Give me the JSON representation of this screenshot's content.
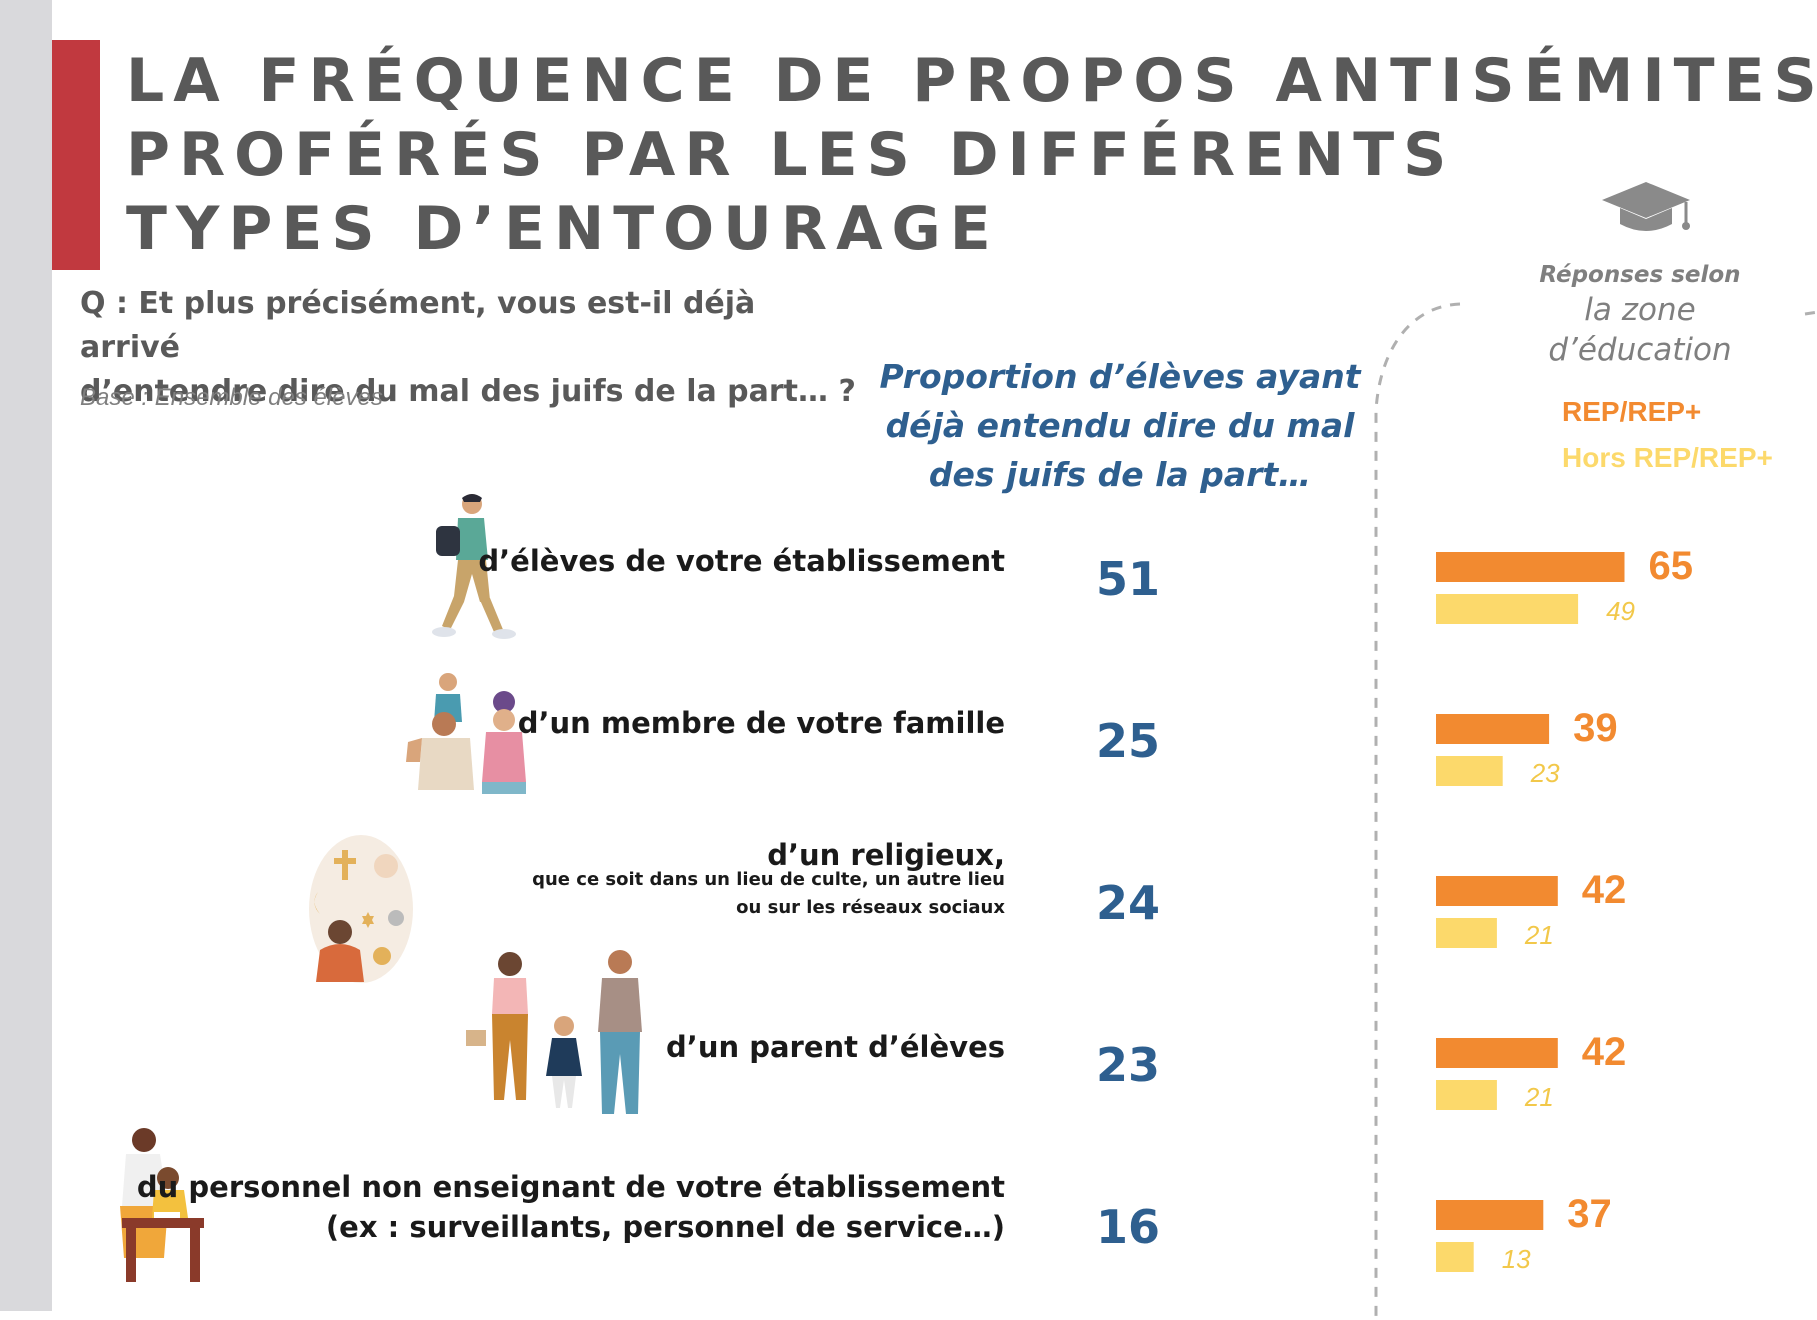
{
  "title": {
    "lines": [
      "LA FRÉQUENCE DE PROPOS ANTISÉMITES",
      "PROFÉRÉS PAR LES DIFFÉRENTS",
      "TYPES D’ENTOURAGE"
    ]
  },
  "question": {
    "lines": [
      "Q : Et plus précisément, vous est-il déjà arrivé",
      "d’entendre dire du mal des juifs de la part… ?"
    ],
    "base": "Base : Ensemble des élèves"
  },
  "column_header": {
    "lines": [
      "Proportion d’élèves ayant",
      "déjà entendu dire du mal",
      "des juifs de la part…"
    ]
  },
  "zone": {
    "small": "Réponses selon",
    "big_lines": [
      "la zone",
      "d’éducation"
    ],
    "icon": "graduation-cap-icon"
  },
  "colors": {
    "rep": "#f28a30",
    "hors_rep": "#fcd96b",
    "total": "#2e5f8f",
    "title_bar": "#c1393f"
  },
  "chart_data": {
    "type": "bar",
    "categories": [
      "d’élèves de votre établissement",
      "d’un membre de votre famille",
      "d’un religieux,",
      "d’un parent d’élèves",
      "du personnel non enseignant de votre établissement"
    ],
    "category_notes": [
      "",
      "",
      "que ce soit dans un lieu de culte, un autre lieu|ou sur les réseaux sociaux",
      "",
      "(ex : surveillants, personnel de service…)"
    ],
    "totals": [
      51,
      25,
      24,
      23,
      16
    ],
    "series": [
      {
        "name": "REP/REP+",
        "values": [
          65,
          39,
          42,
          42,
          37
        ]
      },
      {
        "name": "Hors REP/REP+",
        "values": [
          49,
          23,
          21,
          21,
          13
        ]
      }
    ],
    "xlim": [
      0,
      70
    ]
  }
}
